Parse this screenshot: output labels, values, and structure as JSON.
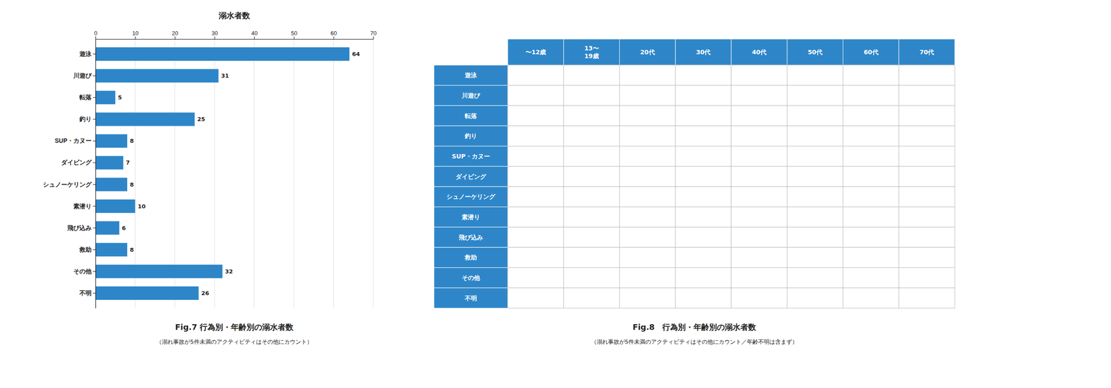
{
  "chart_data": [
    {
      "type": "bar",
      "title": "溺水者数",
      "categories": [
        "遊泳",
        "川遊び",
        "転落",
        "釣り",
        "SUP・カヌー",
        "ダイビング",
        "シュノーケリング",
        "素潜り",
        "飛び込み",
        "救助",
        "その他",
        "不明"
      ],
      "values": [
        64,
        31,
        5,
        25,
        8,
        7,
        8,
        10,
        6,
        8,
        32,
        26
      ],
      "color": "#2e86c8",
      "orientation": "horizontal",
      "xlim": [
        0,
        70
      ],
      "xticks": [
        0,
        10,
        20,
        30,
        40,
        50,
        60,
        70
      ],
      "grid": true,
      "data_labels": true,
      "annotations": [
        "Fig.7 行為別・年齢別の溺水者数",
        "（溺れ事故が5件未満のアクティビティはその他にカウント）"
      ]
    },
    {
      "type": "table",
      "categories": [
        "遊泳",
        "川遊び",
        "転落",
        "釣り",
        "SUP・カヌー",
        "ダイビング",
        "シュノーケリング",
        "素潜り",
        "飛び込み",
        "救助",
        "その他",
        "不明"
      ],
      "columns": [
        "〜12歳",
        "13〜\n19歳",
        "20代",
        "30代",
        "40代",
        "50代",
        "60代",
        "70代"
      ],
      "color": "#2e86c8",
      "annotations": [
        "Fig.8　行為別・年齢別の溺水者数",
        "（溺れ事故が5件未満のアクティビティはその他にカウント／年齢不明は含まず）"
      ]
    }
  ]
}
